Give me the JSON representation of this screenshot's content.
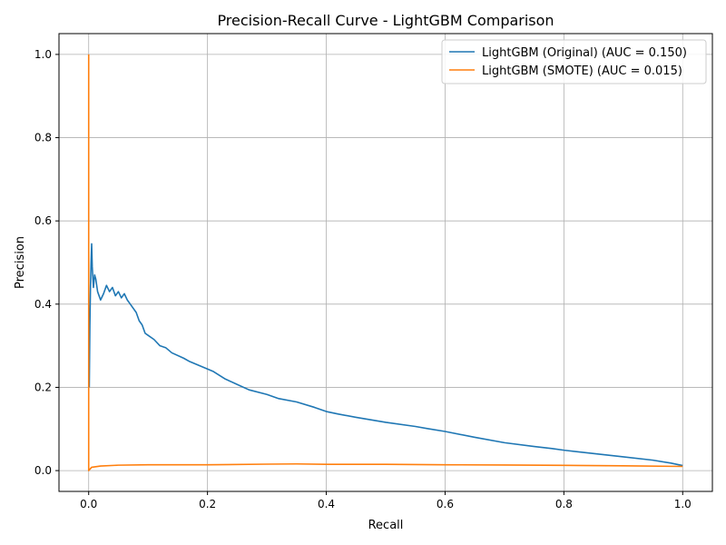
{
  "chart_data": {
    "type": "line",
    "title": "Precision-Recall Curve - LightGBM Comparison",
    "xlabel": "Recall",
    "ylabel": "Precision",
    "xlim": [
      -0.05,
      1.05
    ],
    "ylim": [
      -0.05,
      1.05
    ],
    "xticks": [
      0.0,
      0.2,
      0.4,
      0.6,
      0.8,
      1.0
    ],
    "yticks": [
      0.0,
      0.2,
      0.4,
      0.6,
      0.8,
      1.0
    ],
    "xtick_labels": [
      "0.0",
      "0.2",
      "0.4",
      "0.6",
      "0.8",
      "1.0"
    ],
    "ytick_labels": [
      "0.0",
      "0.2",
      "0.4",
      "0.6",
      "0.8",
      "1.0"
    ],
    "grid": true,
    "legend_position": "top-right",
    "series": [
      {
        "name": "LightGBM (Original) (AUC = 0.150)",
        "color": "#1f77b4",
        "points": [
          [
            1.0,
            0.012
          ],
          [
            0.98,
            0.018
          ],
          [
            0.95,
            0.025
          ],
          [
            0.9,
            0.033
          ],
          [
            0.85,
            0.041
          ],
          [
            0.8,
            0.049
          ],
          [
            0.78,
            0.053
          ],
          [
            0.75,
            0.058
          ],
          [
            0.7,
            0.067
          ],
          [
            0.65,
            0.08
          ],
          [
            0.6,
            0.094
          ],
          [
            0.57,
            0.101
          ],
          [
            0.55,
            0.106
          ],
          [
            0.5,
            0.116
          ],
          [
            0.45,
            0.128
          ],
          [
            0.42,
            0.136
          ],
          [
            0.4,
            0.142
          ],
          [
            0.38,
            0.152
          ],
          [
            0.35,
            0.165
          ],
          [
            0.32,
            0.173
          ],
          [
            0.3,
            0.183
          ],
          [
            0.27,
            0.194
          ],
          [
            0.25,
            0.207
          ],
          [
            0.23,
            0.22
          ],
          [
            0.21,
            0.238
          ],
          [
            0.19,
            0.25
          ],
          [
            0.17,
            0.262
          ],
          [
            0.16,
            0.27
          ],
          [
            0.14,
            0.283
          ],
          [
            0.13,
            0.295
          ],
          [
            0.12,
            0.3
          ],
          [
            0.11,
            0.315
          ],
          [
            0.1,
            0.325
          ],
          [
            0.095,
            0.33
          ],
          [
            0.09,
            0.35
          ],
          [
            0.085,
            0.36
          ],
          [
            0.08,
            0.38
          ],
          [
            0.07,
            0.4
          ],
          [
            0.065,
            0.41
          ],
          [
            0.06,
            0.425
          ],
          [
            0.055,
            0.415
          ],
          [
            0.05,
            0.43
          ],
          [
            0.045,
            0.42
          ],
          [
            0.04,
            0.44
          ],
          [
            0.035,
            0.43
          ],
          [
            0.03,
            0.445
          ],
          [
            0.025,
            0.425
          ],
          [
            0.02,
            0.41
          ],
          [
            0.015,
            0.43
          ],
          [
            0.012,
            0.46
          ],
          [
            0.01,
            0.47
          ],
          [
            0.008,
            0.44
          ],
          [
            0.006,
            0.49
          ],
          [
            0.005,
            0.545
          ],
          [
            0.004,
            0.5
          ],
          [
            0.003,
            0.44
          ],
          [
            0.002,
            0.35
          ],
          [
            0.001,
            0.2
          ]
        ]
      },
      {
        "name": "LightGBM (SMOTE) (AUC = 0.015)",
        "color": "#ff7f0e",
        "points": [
          [
            0.0,
            1.0
          ],
          [
            0.0,
            0.0
          ],
          [
            0.005,
            0.008
          ],
          [
            0.02,
            0.011
          ],
          [
            0.05,
            0.013
          ],
          [
            0.1,
            0.014
          ],
          [
            0.2,
            0.014
          ],
          [
            0.3,
            0.0155
          ],
          [
            0.35,
            0.016
          ],
          [
            0.4,
            0.015
          ],
          [
            0.5,
            0.015
          ],
          [
            0.6,
            0.014
          ],
          [
            0.7,
            0.0135
          ],
          [
            0.8,
            0.0125
          ],
          [
            0.9,
            0.0115
          ],
          [
            1.0,
            0.01
          ]
        ]
      }
    ]
  }
}
